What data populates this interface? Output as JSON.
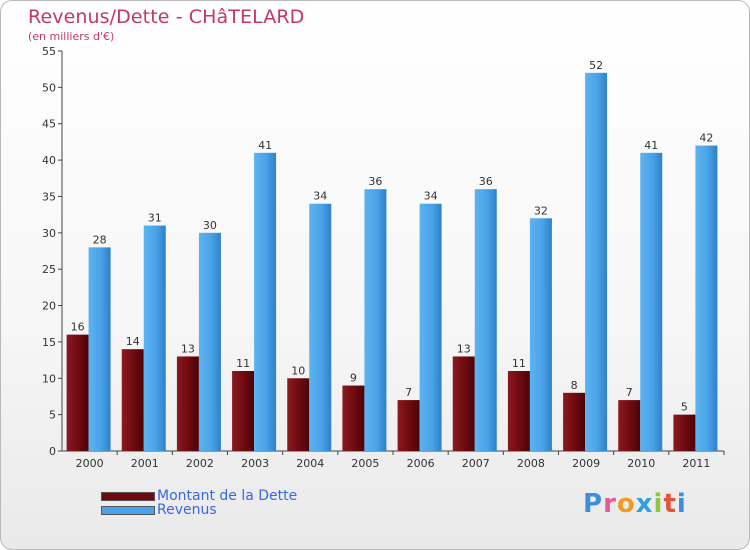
{
  "header": {
    "title": "Revenus/Dette - CHâTELARD",
    "subtitle": "(en milliers d'€)"
  },
  "colors": {
    "dette": "#6e0a10",
    "revenus": "#4aa3e8",
    "title": "#c4366b",
    "legend_text": "#3a68e0"
  },
  "chart_data": {
    "type": "bar",
    "categories": [
      "2000",
      "2001",
      "2002",
      "2003",
      "2004",
      "2005",
      "2006",
      "2007",
      "2008",
      "2009",
      "2010",
      "2011"
    ],
    "series": [
      {
        "name": "Montant de la Dette",
        "values": [
          16,
          14,
          13,
          11,
          10,
          9,
          7,
          13,
          11,
          8,
          7,
          5
        ]
      },
      {
        "name": "Revenus",
        "values": [
          28,
          31,
          30,
          41,
          34,
          36,
          34,
          36,
          32,
          52,
          41,
          42
        ]
      }
    ],
    "ylim": [
      0,
      55
    ],
    "yticks": [
      0,
      5,
      10,
      15,
      20,
      25,
      30,
      35,
      40,
      45,
      50,
      55
    ],
    "grid": false,
    "legend_position": "bottom-left"
  },
  "legend": {
    "items": [
      {
        "label": "Montant de la Dette"
      },
      {
        "label": "Revenus"
      }
    ]
  },
  "logo": {
    "letters": [
      "P",
      "r",
      "o",
      "x",
      "i",
      "t",
      "i"
    ],
    "colors": [
      "#3f8fd8",
      "#e25a9a",
      "#f39a23",
      "#2f9fe0",
      "#8cc63f",
      "#e5523a",
      "#3f8fd8"
    ]
  }
}
